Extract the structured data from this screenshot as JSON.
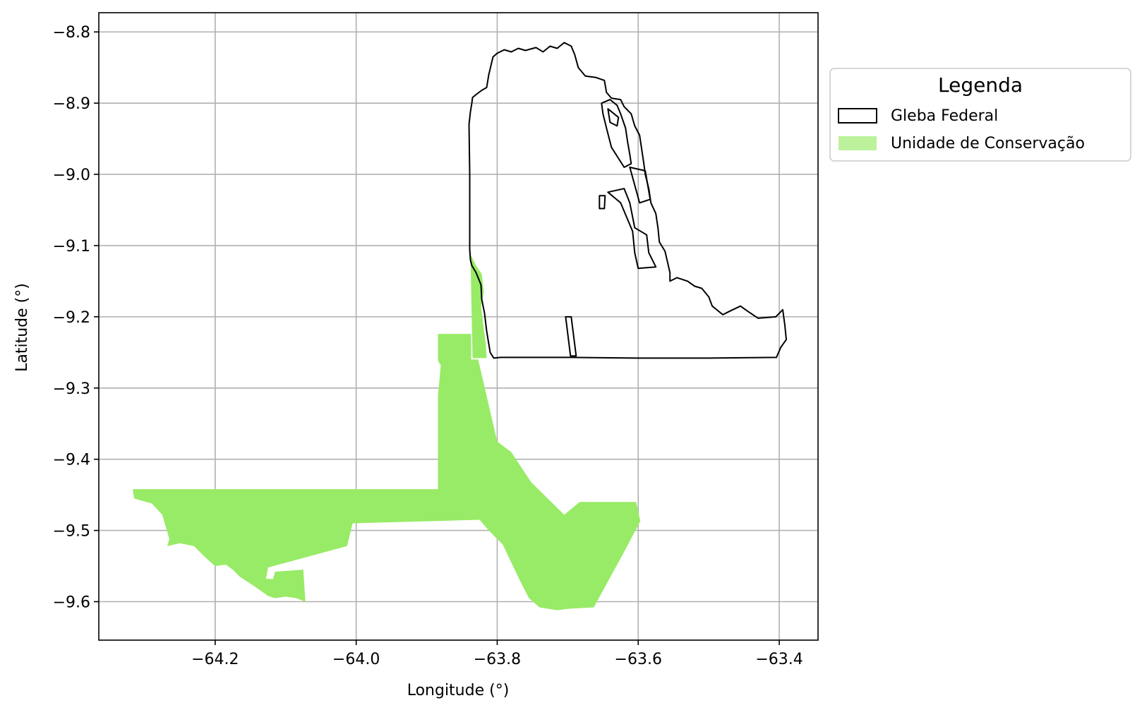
{
  "chart_data": {
    "type": "map",
    "xlabel": "Longitude (°)",
    "ylabel": "Latitude (°)",
    "xlim": [
      -64.365,
      -63.345
    ],
    "ylim": [
      -9.654,
      -8.773
    ],
    "grid": true,
    "xticks": [
      -64.2,
      -64.0,
      -63.8,
      -63.6,
      -63.4
    ],
    "xtick_labels": [
      "−64.2",
      "−64.0",
      "−63.8",
      "−63.6",
      "−63.4"
    ],
    "yticks": [
      -8.8,
      -8.9,
      -9.0,
      -9.1,
      -9.2,
      -9.3,
      -9.4,
      -9.5,
      -9.6
    ],
    "ytick_labels": [
      "−8.8",
      "−8.9",
      "−9.0",
      "−9.1",
      "−9.2",
      "−9.3",
      "−9.4",
      "−9.5",
      "−9.6"
    ],
    "legend": {
      "title": "Legenda",
      "placement": "outside-right-top",
      "entries": [
        {
          "label": "Gleba Federal",
          "style": "outline"
        },
        {
          "label": "Unidade de Conservação",
          "style": "fill"
        }
      ]
    },
    "colors": {
      "gleba_outline": "#000000",
      "conservation_fill": "#98eb66",
      "grid": "#b0b0b0"
    },
    "layers": [
      {
        "name": "Gleba Federal",
        "style": "outline",
        "polygons": [
          [
            [
              -63.835,
              -8.892
            ],
            [
              -63.83,
              -8.888
            ],
            [
              -63.822,
              -8.882
            ],
            [
              -63.815,
              -8.878
            ],
            [
              -63.812,
              -8.86
            ],
            [
              -63.806,
              -8.835
            ],
            [
              -63.8,
              -8.83
            ],
            [
              -63.79,
              -8.825
            ],
            [
              -63.78,
              -8.828
            ],
            [
              -63.77,
              -8.823
            ],
            [
              -63.76,
              -8.826
            ],
            [
              -63.745,
              -8.822
            ],
            [
              -63.735,
              -8.828
            ],
            [
              -63.725,
              -8.82
            ],
            [
              -63.715,
              -8.823
            ],
            [
              -63.705,
              -8.815
            ],
            [
              -63.695,
              -8.82
            ],
            [
              -63.69,
              -8.832
            ],
            [
              -63.685,
              -8.85
            ],
            [
              -63.675,
              -8.862
            ],
            [
              -63.66,
              -8.864
            ],
            [
              -63.648,
              -8.868
            ],
            [
              -63.645,
              -8.885
            ],
            [
              -63.638,
              -8.893
            ],
            [
              -63.625,
              -8.895
            ],
            [
              -63.62,
              -8.905
            ],
            [
              -63.61,
              -8.915
            ],
            [
              -63.605,
              -8.932
            ],
            [
              -63.598,
              -8.945
            ],
            [
              -63.595,
              -8.965
            ],
            [
              -63.592,
              -8.985
            ],
            [
              -63.59,
              -9.0
            ],
            [
              -63.585,
              -9.02
            ],
            [
              -63.582,
              -9.04
            ],
            [
              -63.575,
              -9.055
            ],
            [
              -63.572,
              -9.075
            ],
            [
              -63.57,
              -9.095
            ],
            [
              -63.562,
              -9.108
            ],
            [
              -63.558,
              -9.125
            ],
            [
              -63.555,
              -9.138
            ],
            [
              -63.555,
              -9.15
            ],
            [
              -63.545,
              -9.145
            ],
            [
              -63.53,
              -9.15
            ],
            [
              -63.52,
              -9.157
            ],
            [
              -63.51,
              -9.16
            ],
            [
              -63.5,
              -9.172
            ],
            [
              -63.495,
              -9.185
            ],
            [
              -63.48,
              -9.197
            ],
            [
              -63.47,
              -9.192
            ],
            [
              -63.455,
              -9.185
            ],
            [
              -63.445,
              -9.192
            ],
            [
              -63.43,
              -9.202
            ],
            [
              -63.405,
              -9.2
            ],
            [
              -63.395,
              -9.19
            ],
            [
              -63.392,
              -9.212
            ],
            [
              -63.39,
              -9.232
            ],
            [
              -63.398,
              -9.243
            ],
            [
              -63.404,
              -9.257
            ],
            [
              -63.5,
              -9.258
            ],
            [
              -63.6,
              -9.258
            ],
            [
              -63.7,
              -9.257
            ],
            [
              -63.795,
              -9.257
            ],
            [
              -63.805,
              -9.258
            ],
            [
              -63.81,
              -9.25
            ],
            [
              -63.815,
              -9.22
            ],
            [
              -63.818,
              -9.195
            ],
            [
              -63.822,
              -9.175
            ],
            [
              -63.823,
              -9.155
            ],
            [
              -63.83,
              -9.138
            ],
            [
              -63.836,
              -9.128
            ],
            [
              -63.838,
              -9.12
            ],
            [
              -63.839,
              -9.105
            ],
            [
              -63.839,
              -9.05
            ],
            [
              -63.839,
              -9.0
            ],
            [
              -63.84,
              -8.93
            ],
            [
              -63.838,
              -8.912
            ],
            [
              -63.836,
              -8.9
            ],
            [
              -63.835,
              -8.892
            ]
          ],
          [
            [
              -63.652,
              -8.9
            ],
            [
              -63.64,
              -8.895
            ],
            [
              -63.63,
              -8.903
            ],
            [
              -63.625,
              -8.915
            ],
            [
              -63.618,
              -8.935
            ],
            [
              -63.615,
              -8.955
            ],
            [
              -63.612,
              -8.972
            ],
            [
              -63.61,
              -8.985
            ],
            [
              -63.62,
              -8.99
            ],
            [
              -63.638,
              -8.962
            ],
            [
              -63.645,
              -8.935
            ],
            [
              -63.65,
              -8.915
            ],
            [
              -63.652,
              -8.9
            ]
          ],
          [
            [
              -63.643,
              -8.908
            ],
            [
              -63.628,
              -8.92
            ],
            [
              -63.63,
              -8.932
            ],
            [
              -63.64,
              -8.927
            ],
            [
              -63.643,
              -8.908
            ]
          ],
          [
            [
              -63.612,
              -8.99
            ],
            [
              -63.59,
              -8.995
            ],
            [
              -63.583,
              -9.035
            ],
            [
              -63.598,
              -9.04
            ],
            [
              -63.612,
              -8.99
            ]
          ],
          [
            [
              -63.643,
              -9.025
            ],
            [
              -63.62,
              -9.02
            ],
            [
              -63.612,
              -9.04
            ],
            [
              -63.605,
              -9.075
            ],
            [
              -63.588,
              -9.085
            ],
            [
              -63.585,
              -9.11
            ],
            [
              -63.575,
              -9.13
            ],
            [
              -63.6,
              -9.132
            ],
            [
              -63.605,
              -9.11
            ],
            [
              -63.608,
              -9.08
            ],
            [
              -63.625,
              -9.04
            ],
            [
              -63.643,
              -9.025
            ]
          ],
          [
            [
              -63.655,
              -9.03
            ],
            [
              -63.647,
              -9.03
            ],
            [
              -63.648,
              -9.048
            ],
            [
              -63.655,
              -9.048
            ],
            [
              -63.655,
              -9.03
            ]
          ],
          [
            [
              -63.703,
              -9.2
            ],
            [
              -63.695,
              -9.2
            ],
            [
              -63.688,
              -9.255
            ],
            [
              -63.696,
              -9.255
            ],
            [
              -63.703,
              -9.2
            ]
          ]
        ]
      },
      {
        "name": "Unidade de Conservação",
        "style": "fill",
        "polygons": [
          [
            [
              -63.838,
              -9.112
            ],
            [
              -63.83,
              -9.128
            ],
            [
              -63.822,
              -9.14
            ],
            [
              -63.819,
              -9.165
            ],
            [
              -63.823,
              -9.185
            ],
            [
              -63.82,
              -9.21
            ],
            [
              -63.816,
              -9.24
            ],
            [
              -63.815,
              -9.258
            ],
            [
              -63.835,
              -9.258
            ],
            [
              -63.838,
              -9.112
            ]
          ],
          [
            [
              -63.837,
              -9.224
            ],
            [
              -63.884,
              -9.224
            ],
            [
              -63.884,
              -9.262
            ],
            [
              -63.88,
              -9.268
            ],
            [
              -63.882,
              -9.29
            ],
            [
              -63.884,
              -9.31
            ],
            [
              -63.884,
              -9.442
            ],
            [
              -64.317,
              -9.442
            ],
            [
              -64.315,
              -9.455
            ],
            [
              -64.305,
              -9.458
            ],
            [
              -64.29,
              -9.462
            ],
            [
              -64.275,
              -9.478
            ],
            [
              -64.27,
              -9.495
            ],
            [
              -64.265,
              -9.512
            ],
            [
              -64.268,
              -9.522
            ],
            [
              -64.25,
              -9.518
            ],
            [
              -64.23,
              -9.522
            ],
            [
              -64.215,
              -9.537
            ],
            [
              -64.2,
              -9.55
            ],
            [
              -64.185,
              -9.548
            ],
            [
              -64.175,
              -9.555
            ],
            [
              -64.165,
              -9.565
            ],
            [
              -64.145,
              -9.578
            ],
            [
              -64.125,
              -9.592
            ],
            [
              -64.115,
              -9.595
            ],
            [
              -64.1,
              -9.593
            ],
            [
              -64.085,
              -9.595
            ],
            [
              -64.072,
              -9.6
            ],
            [
              -64.075,
              -9.555
            ],
            [
              -64.115,
              -9.558
            ],
            [
              -64.118,
              -9.568
            ],
            [
              -64.128,
              -9.568
            ],
            [
              -64.125,
              -9.552
            ],
            [
              -64.013,
              -9.522
            ],
            [
              -64.005,
              -9.49
            ],
            [
              -63.825,
              -9.485
            ],
            [
              -63.812,
              -9.5
            ],
            [
              -63.792,
              -9.52
            ],
            [
              -63.768,
              -9.57
            ],
            [
              -63.755,
              -9.595
            ],
            [
              -63.74,
              -9.608
            ],
            [
              -63.715,
              -9.612
            ],
            [
              -63.7,
              -9.61
            ],
            [
              -63.663,
              -9.608
            ],
            [
              -63.62,
              -9.53
            ],
            [
              -63.597,
              -9.487
            ],
            [
              -63.603,
              -9.46
            ],
            [
              -63.683,
              -9.46
            ],
            [
              -63.705,
              -9.478
            ],
            [
              -63.752,
              -9.432
            ],
            [
              -63.78,
              -9.39
            ],
            [
              -63.8,
              -9.375
            ],
            [
              -63.827,
              -9.26
            ],
            [
              -63.837,
              -9.26
            ],
            [
              -63.837,
              -9.224
            ]
          ]
        ]
      }
    ]
  }
}
